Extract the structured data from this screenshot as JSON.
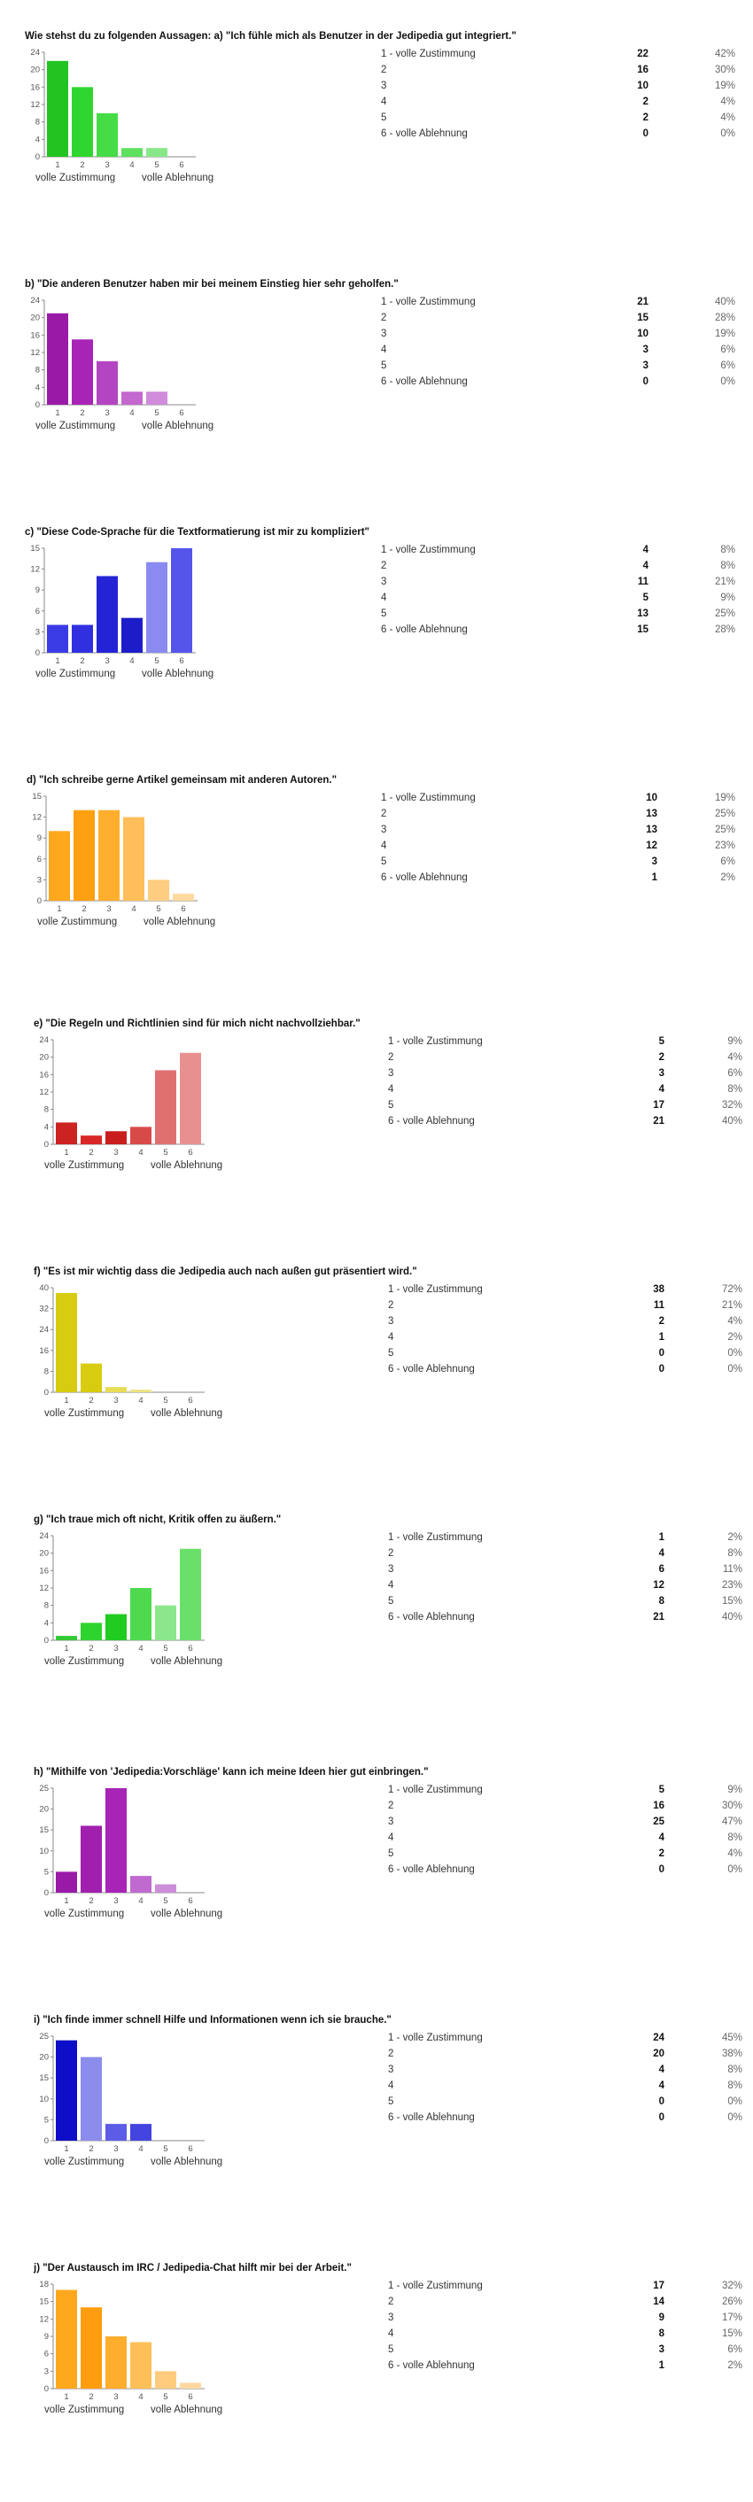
{
  "colors": {
    "green": [
      "#22c422",
      "#2fd62f",
      "#46dc46",
      "#5fe05f",
      "#88e888",
      "#a8eea8"
    ],
    "purple": [
      "#9a1aa8",
      "#a824b6",
      "#b445c2",
      "#c268cf",
      "#d08cdb",
      "#dcaee6"
    ],
    "blue": [
      "#3b3be6",
      "#3030e0",
      "#2424d6",
      "#1c1cc8",
      "#8a8af0",
      "#5555ec"
    ],
    "orange": [
      "#ffa81e",
      "#ffa011",
      "#ffae2e",
      "#ffbe5a",
      "#ffcd80",
      "#ffd9a0"
    ],
    "red": [
      "#cc2222",
      "#d92626",
      "#c81e1e",
      "#d84a4a",
      "#e07070",
      "#e89090"
    ],
    "yellow": [
      "#d8cc10",
      "#d8cc10",
      "#e6dc55",
      "#ece383",
      "#f0ea9e",
      "#f4efb6"
    ],
    "green2": [
      "#34c934",
      "#2ed42e",
      "#20cc20",
      "#4fd94f",
      "#8ce68c",
      "#6ae06a"
    ],
    "purple2": [
      "#9a1aa8",
      "#a01faf",
      "#a824b6",
      "#c06ad0",
      "#cd8ed9",
      "#d9abe3"
    ],
    "blue2": [
      "#0e0ec8",
      "#8c8cec",
      "#5c5ce6",
      "#4444e0",
      "#b0b0f2",
      "#c8c8f6"
    ],
    "orange2": [
      "#ffa81e",
      "#ff9d0e",
      "#ffad2c",
      "#ffbf58",
      "#ffcb7c",
      "#ffd8a0"
    ]
  },
  "chart_data": [
    {
      "type": "bar",
      "title": "Wie stehst du zu folgenden Aussagen: a) \"Ich fühle mich als Benutzer in der Jedipedia gut integriert.\"",
      "categories": [
        "1",
        "2",
        "3",
        "4",
        "5",
        "6"
      ],
      "values": [
        22,
        16,
        10,
        2,
        2,
        0
      ],
      "percents": [
        "42%",
        "30%",
        "19%",
        "4%",
        "4%",
        "0%"
      ],
      "yticks": [
        0,
        4,
        8,
        12,
        16,
        20,
        24
      ],
      "ylim": [
        0,
        24
      ],
      "palette": "green",
      "axis_left_label": "volle Zustimmung",
      "axis_right_label": "volle Ablehnung",
      "rows": [
        "1 -   volle Zustimmung",
        "2",
        "3",
        "4",
        "5",
        "6 -   volle Ablehnung"
      ]
    },
    {
      "type": "bar",
      "title": "b) \"Die anderen Benutzer haben mir bei meinem Einstieg hier sehr geholfen.\"",
      "categories": [
        "1",
        "2",
        "3",
        "4",
        "5",
        "6"
      ],
      "values": [
        21,
        15,
        10,
        3,
        3,
        0
      ],
      "percents": [
        "40%",
        "28%",
        "19%",
        "6%",
        "6%",
        "0%"
      ],
      "yticks": [
        0,
        4,
        8,
        12,
        16,
        20,
        24
      ],
      "ylim": [
        0,
        24
      ],
      "palette": "purple",
      "axis_left_label": "volle Zustimmung",
      "axis_right_label": "volle Ablehnung",
      "rows": [
        "1 -   volle Zustimmung",
        "2",
        "3",
        "4",
        "5",
        "6 -   volle Ablehnung"
      ]
    },
    {
      "type": "bar",
      "title": "c) \"Diese Code-Sprache für die Textformatierung ist mir zu kompliziert\"",
      "categories": [
        "1",
        "2",
        "3",
        "4",
        "5",
        "6"
      ],
      "values": [
        4,
        4,
        11,
        5,
        13,
        15
      ],
      "percents": [
        "8%",
        "8%",
        "21%",
        "9%",
        "25%",
        "28%"
      ],
      "yticks": [
        0,
        3,
        6,
        9,
        12,
        15
      ],
      "ylim": [
        0,
        15
      ],
      "palette": "blue",
      "axis_left_label": "volle Zustimmung",
      "axis_right_label": "volle Ablehnung",
      "rows": [
        "1 -   volle Zustimmung",
        "2",
        "3",
        "4",
        "5",
        "6 -   volle Ablehnung"
      ]
    },
    {
      "type": "bar",
      "title": "d) \"Ich schreibe gerne Artikel gemeinsam mit anderen Autoren.\"",
      "categories": [
        "1",
        "2",
        "3",
        "4",
        "5",
        "6"
      ],
      "values": [
        10,
        13,
        13,
        12,
        3,
        1
      ],
      "percents": [
        "19%",
        "25%",
        "25%",
        "23%",
        "6%",
        "2%"
      ],
      "yticks": [
        0,
        3,
        6,
        9,
        12,
        15
      ],
      "ylim": [
        0,
        15
      ],
      "palette": "orange",
      "axis_left_label": "volle Zustimmung",
      "axis_right_label": "volle Ablehnung",
      "rows": [
        "1 -   volle Zustimmung",
        "2",
        "3",
        "4",
        "5",
        "6 -   volle Ablehnung"
      ]
    },
    {
      "type": "bar",
      "title": "e) \"Die Regeln und Richtlinien sind für mich nicht nachvollziehbar.\"",
      "categories": [
        "1",
        "2",
        "3",
        "4",
        "5",
        "6"
      ],
      "values": [
        5,
        2,
        3,
        4,
        17,
        21
      ],
      "percents": [
        "9%",
        "4%",
        "6%",
        "8%",
        "32%",
        "40%"
      ],
      "yticks": [
        0,
        4,
        8,
        12,
        16,
        20,
        24
      ],
      "ylim": [
        0,
        24
      ],
      "palette": "red",
      "axis_left_label": "volle Zustimmung",
      "axis_right_label": "volle Ablehnung",
      "rows": [
        "1 -   volle Zustimmung",
        "2",
        "3",
        "4",
        "5",
        "6 -   volle Ablehnung"
      ]
    },
    {
      "type": "bar",
      "title": "f) \"Es ist mir wichtig dass die Jedipedia auch nach außen gut präsentiert wird.\"",
      "categories": [
        "1",
        "2",
        "3",
        "4",
        "5",
        "6"
      ],
      "values": [
        38,
        11,
        2,
        1,
        0,
        0
      ],
      "percents": [
        "72%",
        "21%",
        "4%",
        "2%",
        "0%",
        "0%"
      ],
      "yticks": [
        0,
        8,
        16,
        24,
        32,
        40
      ],
      "ylim": [
        0,
        40
      ],
      "palette": "yellow",
      "axis_left_label": "volle Zustimmung",
      "axis_right_label": "volle Ablehnung",
      "rows": [
        "1 -   volle Zustimmung",
        "2",
        "3",
        "4",
        "5",
        "6 -   volle Ablehnung"
      ]
    },
    {
      "type": "bar",
      "title": "g) \"Ich traue mich oft nicht, Kritik offen zu äußern.\"",
      "categories": [
        "1",
        "2",
        "3",
        "4",
        "5",
        "6"
      ],
      "values": [
        1,
        4,
        6,
        12,
        8,
        21
      ],
      "percents": [
        "2%",
        "8%",
        "11%",
        "23%",
        "15%",
        "40%"
      ],
      "yticks": [
        0,
        4,
        8,
        12,
        16,
        20,
        24
      ],
      "ylim": [
        0,
        24
      ],
      "palette": "green2",
      "axis_left_label": "volle Zustimmung",
      "axis_right_label": "volle Ablehnung",
      "rows": [
        "1 -   volle Zustimmung",
        "2",
        "3",
        "4",
        "5",
        "6 -   volle Ablehnung"
      ]
    },
    {
      "type": "bar",
      "title": "h) \"Mithilfe von 'Jedipedia:Vorschläge' kann ich meine Ideen hier gut einbringen.\"",
      "categories": [
        "1",
        "2",
        "3",
        "4",
        "5",
        "6"
      ],
      "values": [
        5,
        16,
        25,
        4,
        2,
        0
      ],
      "percents": [
        "9%",
        "30%",
        "47%",
        "8%",
        "4%",
        "0%"
      ],
      "yticks": [
        0,
        5,
        10,
        15,
        20,
        25
      ],
      "ylim": [
        0,
        25
      ],
      "palette": "purple2",
      "axis_left_label": "volle Zustimmung",
      "axis_right_label": "volle Ablehnung",
      "rows": [
        "1 -   volle Zustimmung",
        "2",
        "3",
        "4",
        "5",
        "6 -   volle Ablehnung"
      ]
    },
    {
      "type": "bar",
      "title": "i) \"Ich finde immer schnell Hilfe und Informationen wenn ich sie brauche.\"",
      "categories": [
        "1",
        "2",
        "3",
        "4",
        "5",
        "6"
      ],
      "values": [
        24,
        20,
        4,
        4,
        0,
        0
      ],
      "percents": [
        "45%",
        "38%",
        "8%",
        "8%",
        "0%",
        "0%"
      ],
      "yticks": [
        0,
        5,
        10,
        15,
        20,
        25
      ],
      "ylim": [
        0,
        25
      ],
      "palette": "blue2",
      "axis_left_label": "volle Zustimmung",
      "axis_right_label": "volle Ablehnung",
      "rows": [
        "1 -   volle Zustimmung",
        "2",
        "3",
        "4",
        "5",
        "6 -   volle Ablehnung"
      ]
    },
    {
      "type": "bar",
      "title": "j) \"Der Austausch im IRC / Jedipedia-Chat hilft mir bei der Arbeit.\"",
      "categories": [
        "1",
        "2",
        "3",
        "4",
        "5",
        "6"
      ],
      "values": [
        17,
        14,
        9,
        8,
        3,
        1
      ],
      "percents": [
        "32%",
        "26%",
        "17%",
        "15%",
        "6%",
        "2%"
      ],
      "yticks": [
        0,
        3,
        6,
        9,
        12,
        15,
        18
      ],
      "ylim": [
        0,
        18
      ],
      "palette": "orange2",
      "axis_left_label": "volle Zustimmung",
      "axis_right_label": "volle Ablehnung",
      "rows": [
        "1 -   volle Zustimmung",
        "2",
        "3",
        "4",
        "5",
        "6 -   volle Ablehnung"
      ]
    }
  ]
}
